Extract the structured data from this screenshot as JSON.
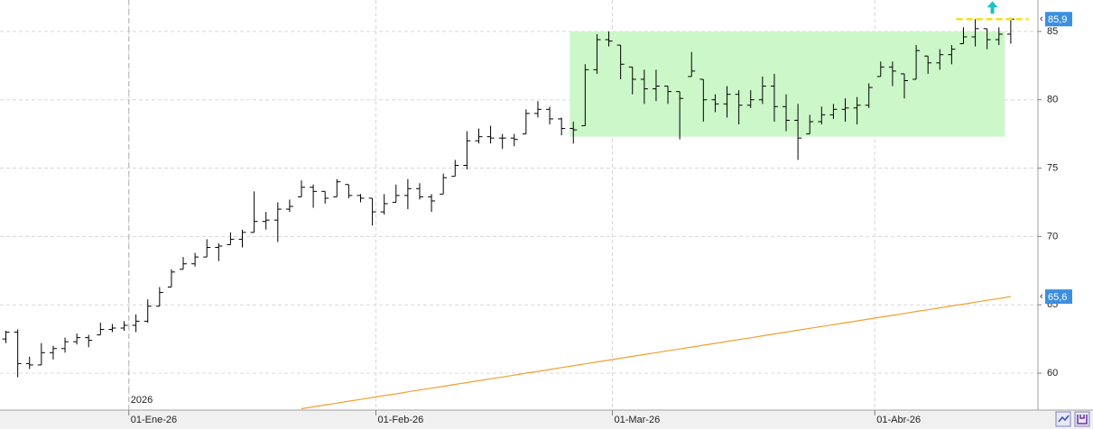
{
  "chart_data": {
    "type": "ohlc",
    "xlim": [
      -0.5,
      87.3
    ],
    "ylim": [
      57.3,
      87.3
    ],
    "xticks": [
      {
        "value": 10.4,
        "label": "01-Ene-26"
      },
      {
        "value": 31.3,
        "label": "01-Feb-26"
      },
      {
        "value": 51.3,
        "label": "01-Mar-26"
      },
      {
        "value": 73.5,
        "label": "01-Abr-26"
      }
    ],
    "yticks": [
      60,
      65,
      70,
      75,
      80,
      85
    ],
    "grid": true,
    "year_marker": {
      "x": 10.4,
      "label": "2026"
    },
    "color": "#000000",
    "open": [
      62.5,
      63.0,
      60.7,
      60.6,
      61.5,
      61.8,
      62.3,
      62.6,
      62.8,
      63.2,
      63.3,
      63.5,
      63.8,
      64.9,
      66.3,
      67.6,
      68.0,
      68.5,
      69.2,
      69.4,
      69.8,
      70.3,
      71.1,
      71.2,
      72.0,
      72.9,
      73.6,
      73.3,
      72.9,
      73.8,
      73.0,
      72.8,
      71.8,
      72.5,
      73.0,
      73.5,
      72.9,
      73.1,
      74.4,
      75.2,
      77.0,
      77.3,
      77.2,
      77.2,
      77.5,
      79.0,
      79.3,
      78.6,
      77.9,
      78.1,
      82.2,
      84.4,
      84.0,
      82.4,
      81.5,
      80.8,
      81.0,
      80.6,
      81.7,
      81.5,
      80.0,
      79.7,
      80.4,
      79.6,
      80.0,
      81.0,
      79.5,
      78.5,
      77.5,
      78.4,
      78.9,
      79.3,
      79.4,
      79.6,
      81.7,
      82.4,
      81.9,
      81.5,
      83.2,
      82.7,
      83.3,
      84.1,
      84.6,
      85.2,
      84.4,
      84.8
    ],
    "high": [
      63.1,
      63.2,
      61.2,
      62.2,
      62.0,
      62.6,
      62.9,
      62.8,
      63.7,
      63.6,
      63.8,
      64.3,
      65.4,
      66.3,
      67.6,
      68.5,
      68.8,
      69.8,
      69.5,
      70.3,
      70.5,
      73.3,
      71.8,
      72.5,
      72.7,
      74.1,
      73.8,
      73.3,
      74.2,
      73.8,
      73.1,
      72.8,
      73.1,
      73.8,
      74.2,
      73.9,
      73.1,
      74.6,
      75.6,
      77.7,
      77.9,
      78.1,
      77.5,
      77.5,
      79.3,
      79.9,
      79.5,
      78.7,
      78.4,
      82.6,
      84.8,
      85.0,
      84.0,
      82.4,
      82.2,
      82.2,
      81.0,
      80.6,
      83.5,
      81.5,
      80.4,
      81.0,
      80.7,
      80.7,
      81.7,
      81.9,
      80.4,
      79.7,
      78.9,
      79.5,
      79.7,
      80.1,
      80.2,
      81.2,
      82.8,
      82.8,
      81.9,
      84.0,
      83.2,
      83.7,
      84.0,
      85.3,
      85.9,
      85.2,
      85.3,
      86.0
    ],
    "low": [
      62.2,
      59.7,
      60.3,
      60.6,
      61.0,
      61.5,
      62.1,
      61.9,
      62.8,
      63.0,
      63.1,
      63.0,
      63.7,
      64.9,
      66.3,
      67.6,
      67.8,
      68.5,
      68.2,
      69.4,
      69.2,
      70.3,
      70.5,
      69.6,
      71.8,
      72.9,
      72.1,
      72.4,
      72.9,
      72.8,
      72.5,
      70.8,
      71.6,
      72.5,
      72.0,
      72.7,
      71.8,
      73.1,
      74.4,
      74.9,
      76.8,
      76.8,
      76.4,
      76.6,
      77.5,
      78.7,
      78.2,
      77.4,
      76.8,
      78.1,
      81.9,
      83.9,
      81.5,
      80.4,
      79.7,
      79.9,
      79.7,
      77.1,
      81.7,
      78.4,
      79.1,
      78.7,
      78.2,
      79.4,
      79.7,
      78.4,
      77.7,
      75.6,
      77.5,
      78.2,
      78.6,
      78.4,
      78.2,
      79.4,
      81.7,
      81.0,
      80.1,
      81.5,
      81.9,
      82.2,
      82.6,
      84.1,
      83.9,
      83.7,
      84.0,
      84.1
    ],
    "close": [
      63.0,
      60.7,
      60.6,
      61.5,
      61.8,
      62.3,
      62.6,
      62.4,
      63.2,
      63.3,
      63.5,
      63.8,
      64.9,
      65.9,
      67.4,
      68.0,
      68.5,
      69.2,
      69.3,
      69.8,
      70.3,
      71.1,
      71.2,
      72.0,
      72.2,
      73.6,
      73.3,
      72.8,
      74.0,
      73.0,
      72.8,
      71.8,
      72.4,
      73.0,
      73.5,
      72.9,
      72.6,
      74.3,
      75.2,
      77.0,
      77.3,
      77.2,
      77.2,
      77.1,
      79.0,
      79.3,
      78.6,
      77.9,
      77.8,
      82.2,
      84.4,
      84.3,
      82.6,
      81.5,
      80.8,
      81.0,
      80.6,
      80.1,
      82.1,
      80.0,
      79.7,
      80.4,
      79.6,
      80.0,
      81.0,
      79.5,
      78.5,
      77.2,
      78.4,
      78.9,
      79.3,
      79.4,
      79.6,
      80.9,
      82.4,
      82.1,
      81.4,
      83.6,
      82.7,
      83.3,
      83.7,
      84.6,
      85.2,
      84.4,
      84.8,
      85.9
    ],
    "moving_average": {
      "color": "#f0a030",
      "values": [
        null,
        null,
        null,
        null,
        null,
        null,
        null,
        null,
        null,
        null,
        null,
        null,
        null,
        null,
        null,
        null,
        null,
        null,
        null,
        null,
        null,
        null,
        null,
        null,
        null,
        57.4,
        57.54,
        57.67,
        57.81,
        57.95,
        58.08,
        58.22,
        58.36,
        58.49,
        58.63,
        58.77,
        58.9,
        59.04,
        59.18,
        59.31,
        59.45,
        59.59,
        59.72,
        59.86,
        60.0,
        60.13,
        60.27,
        60.41,
        60.54,
        60.68,
        60.82,
        60.95,
        61.09,
        61.23,
        61.36,
        61.5,
        61.64,
        61.77,
        61.91,
        62.05,
        62.18,
        62.32,
        62.46,
        62.59,
        62.73,
        62.87,
        63.0,
        63.14,
        63.28,
        63.41,
        63.55,
        63.69,
        63.82,
        63.96,
        64.1,
        64.23,
        64.37,
        64.51,
        64.64,
        64.78,
        64.92,
        65.05,
        65.19,
        65.33,
        65.46,
        65.6
      ]
    },
    "zone": {
      "color": "#ccf7c8",
      "xlim": [
        47.7,
        84.5
      ],
      "ylim": [
        77.3,
        85.0
      ]
    },
    "level": {
      "color": "#f2e21c",
      "value": 85.9,
      "xlim": [
        80.4,
        86.5
      ]
    },
    "price_labels": [
      {
        "value": 85.9,
        "label": "85,9",
        "color": "#3b8fe0"
      },
      {
        "value": 65.6,
        "label": "65,6",
        "color": "#3b8fe0"
      }
    ]
  }
}
